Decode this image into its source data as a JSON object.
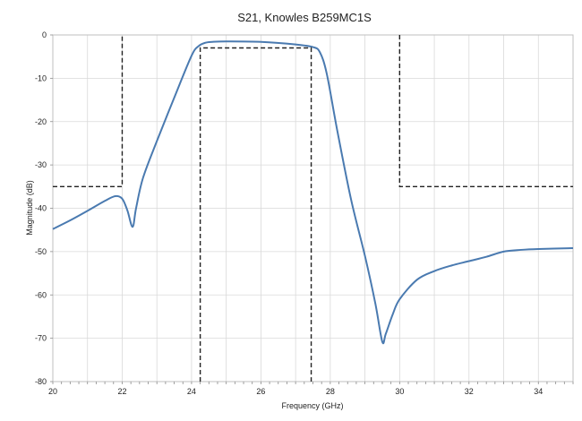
{
  "chart_data": {
    "type": "line",
    "title": "S21, Knowles B259MC1S",
    "xlabel": "Frequency (GHz)",
    "ylabel": "Magnitude (dB)",
    "xlim": [
      20,
      35
    ],
    "ylim": [
      -80,
      0
    ],
    "x_ticks": [
      20,
      22,
      24,
      26,
      28,
      30,
      32,
      34
    ],
    "x_tick_labels": [
      "20",
      "22",
      "24",
      "26",
      "28",
      "30",
      "32",
      "34"
    ],
    "y_ticks": [
      0,
      -10,
      -20,
      -30,
      -40,
      -50,
      -60,
      -70,
      -80
    ],
    "y_tick_labels": [
      "0",
      "-10",
      "-20",
      "-30",
      "-40",
      "-50",
      "-60",
      "-70",
      "-80"
    ],
    "grid": true,
    "legend": "none",
    "colors": {
      "measured": "#4a7ab0",
      "mask": "#222222",
      "grid": "#d9d9d9"
    },
    "series": [
      {
        "style": "solid",
        "x": [
          20.0,
          20.5,
          21.0,
          21.5,
          21.8,
          22.0,
          22.15,
          22.3,
          22.4,
          22.6,
          23.0,
          23.5,
          24.0,
          24.2,
          24.4,
          24.6,
          25.0,
          26.0,
          27.0,
          27.5,
          27.7,
          27.9,
          28.2,
          28.6,
          29.0,
          29.3,
          29.5,
          29.6,
          29.8,
          30.0,
          30.5,
          31.0,
          31.5,
          32.0,
          32.5,
          33.0,
          33.5,
          34.0,
          35.0
        ],
        "y": [
          -44.8,
          -42.8,
          -40.6,
          -38.3,
          -37.2,
          -37.8,
          -40.5,
          -44.3,
          -40.0,
          -33.0,
          -24.5,
          -14.5,
          -4.8,
          -2.6,
          -1.8,
          -1.6,
          -1.5,
          -1.6,
          -2.2,
          -2.8,
          -4.0,
          -9.0,
          -22.0,
          -38.0,
          -51.0,
          -62.0,
          -70.8,
          -69.0,
          -64.5,
          -61.0,
          -56.5,
          -54.5,
          -53.2,
          -52.2,
          -51.2,
          -50.0,
          -49.6,
          -49.4,
          -49.2
        ]
      },
      {
        "style": "dashed",
        "x": [
          20.0,
          22.0,
          22.0
        ],
        "y": [
          -35,
          -35,
          0
        ]
      },
      {
        "style": "dashed",
        "x": [
          24.25,
          24.25,
          27.45,
          27.45
        ],
        "y": [
          -80,
          -3,
          -3,
          -80
        ]
      },
      {
        "style": "dashed",
        "x": [
          30.0,
          30.0,
          35.0
        ],
        "y": [
          0,
          -35,
          -35
        ]
      }
    ]
  }
}
